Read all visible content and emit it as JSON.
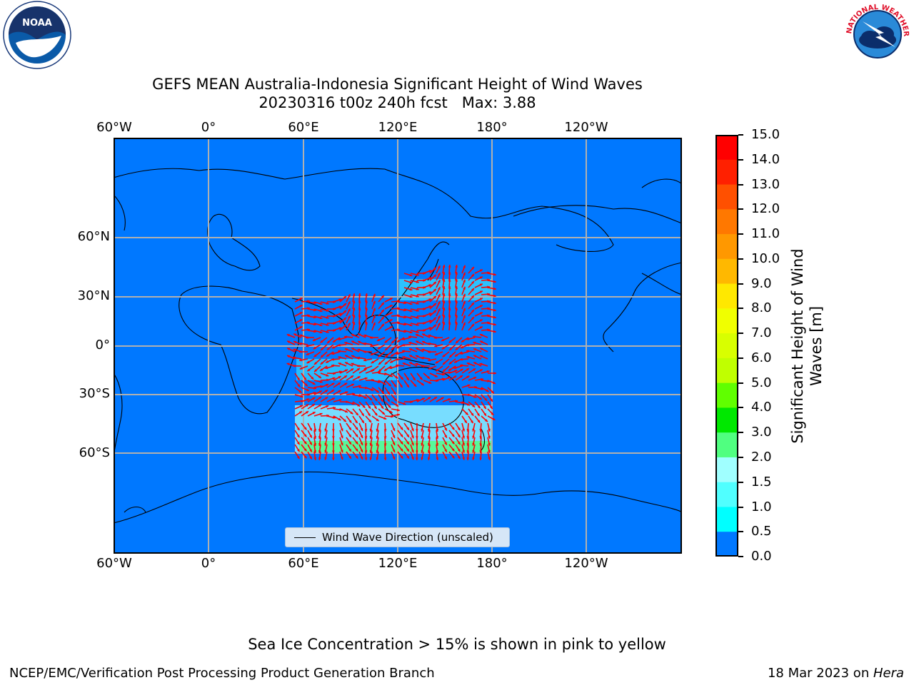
{
  "title_line1": "GEFS MEAN Australia-Indonesia Significant Height of Wind Waves",
  "title_line2": "20230316 t00z 240h fcst   Max: 3.88",
  "lon_labels": [
    "60°W",
    "0°",
    "60°E",
    "120°E",
    "180°",
    "120°W"
  ],
  "lat_labels": [
    "60°N",
    "30°N",
    "0°",
    "30°S",
    "60°S"
  ],
  "legend_label": "Wind Wave Direction (unscaled)",
  "colorbar": {
    "label_line1": "Significant Height of Wind",
    "label_line2": "Waves [m]",
    "ticks": [
      "15.0",
      "14.0",
      "13.0",
      "12.0",
      "11.0",
      "10.0",
      "9.0",
      "8.0",
      "7.0",
      "6.0",
      "5.0",
      "4.0",
      "3.0",
      "2.0",
      "1.5",
      "1.0",
      "0.5",
      "0.0"
    ],
    "colors": [
      "#ff0000",
      "#ff2000",
      "#ff5000",
      "#ff7800",
      "#ff9800",
      "#ffb800",
      "#ffe800",
      "#f0ff00",
      "#d8ff00",
      "#c0ff00",
      "#60ff00",
      "#00e800",
      "#50ff80",
      "#a0ffff",
      "#50ffff",
      "#00ffff",
      "#0078ff",
      "#0000ff"
    ]
  },
  "colors": {
    "ocean": "#0078ff",
    "arrows": "#ff0000",
    "domain_fill": "#50ffff"
  },
  "note": "Sea Ice Concentration > 15% is shown in pink to yellow",
  "footer_left": "NCEP/EMC/Verification Post Processing Product Generation Branch",
  "footer_date": "18 Mar 2023 on ",
  "footer_machine": "Hera",
  "logos": {
    "noaa": "NOAA",
    "nws": "NATIONAL WEATHER SERVICE"
  }
}
